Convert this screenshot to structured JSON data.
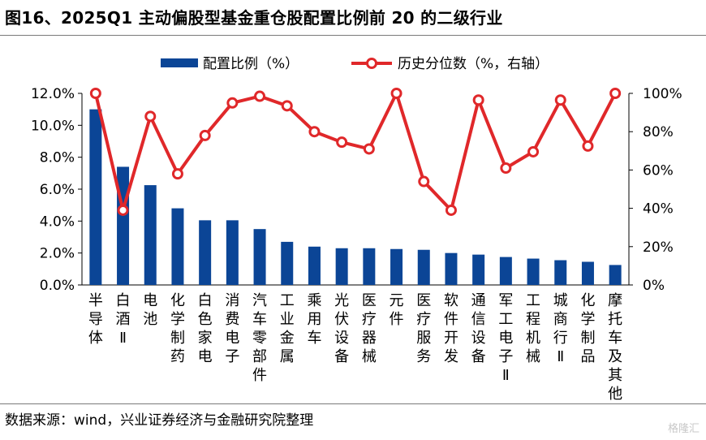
{
  "title": "图16、2025Q1 主动偏股型基金重仓股配置比例前 20 的二级行业",
  "source": "数据来源：wind，兴业证券经济与金融研究院整理",
  "watermark": "格隆汇",
  "colors": {
    "bar": "#0b4596",
    "line": "#e0282a",
    "marker_fill": "#ffffff"
  },
  "chart_data": {
    "type": "bar",
    "categories": [
      "半导体",
      "白酒Ⅱ",
      "电池",
      "化学制药",
      "白色家电",
      "消费电子",
      "汽车零部件",
      "工业金属",
      "乘用车",
      "光伏设备",
      "医疗器械",
      "元件",
      "医疗服务",
      "软件开发",
      "通信设备",
      "军工电子Ⅱ",
      "工程机械",
      "城商行Ⅱ",
      "化学制品",
      "摩托车及其他"
    ],
    "series": [
      {
        "name": "配置比例（%）",
        "type": "bar",
        "axis": "left",
        "values": [
          11.0,
          7.4,
          6.25,
          4.8,
          4.05,
          4.05,
          3.5,
          2.7,
          2.4,
          2.3,
          2.3,
          2.25,
          2.2,
          2.0,
          1.9,
          1.75,
          1.65,
          1.55,
          1.45,
          1.25
        ]
      },
      {
        "name": "历史分位数（%，右轴）",
        "type": "line",
        "axis": "right",
        "values": [
          100,
          39,
          88,
          58,
          78,
          95,
          98.5,
          93.5,
          80,
          74.5,
          71,
          100,
          54,
          39,
          96.5,
          61,
          69.5,
          96.5,
          72.5,
          100
        ]
      }
    ],
    "y_left": {
      "min": 0,
      "max": 12,
      "ticks": [
        "0.0%",
        "2.0%",
        "4.0%",
        "6.0%",
        "8.0%",
        "10.0%",
        "12.0%"
      ]
    },
    "y_right": {
      "min": 0,
      "max": 100,
      "ticks": [
        "0%",
        "20%",
        "40%",
        "60%",
        "80%",
        "100%"
      ]
    },
    "legend_position": "top",
    "grid": false
  }
}
